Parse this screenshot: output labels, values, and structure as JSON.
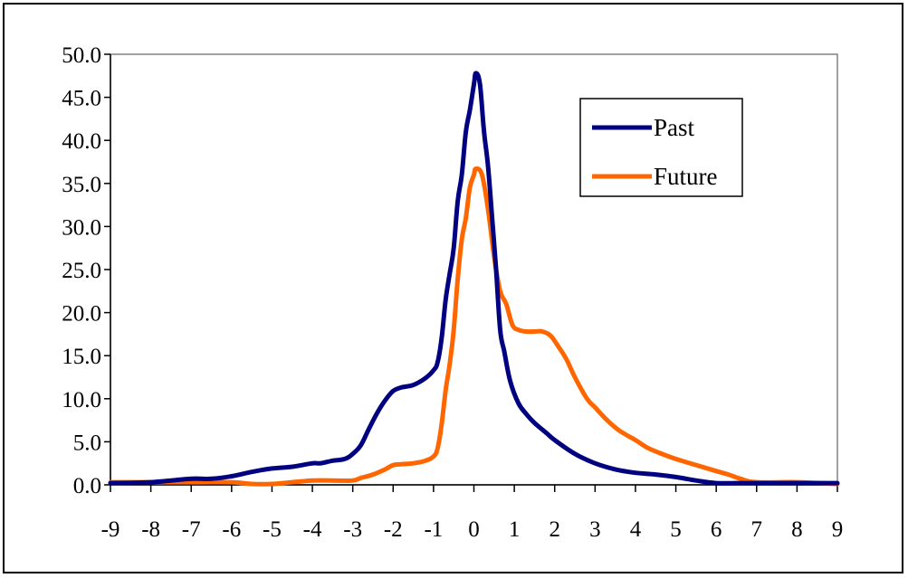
{
  "chart_data": {
    "type": "line",
    "title": "",
    "xlabel": "",
    "ylabel": "",
    "xlim": [
      -9,
      9
    ],
    "ylim": [
      0,
      50
    ],
    "x_ticks": [
      -9,
      -8,
      -7,
      -6,
      -5,
      -4,
      -3,
      -2,
      -1,
      0,
      1,
      2,
      3,
      4,
      5,
      6,
      7,
      8,
      9
    ],
    "x_tick_labels": [
      "-9",
      "-8",
      "-7",
      "-6",
      "-5",
      "-4",
      "-3",
      "-2",
      "-1",
      "0",
      "1",
      "2",
      "3",
      "4",
      "5",
      "6",
      "7",
      "8",
      "9"
    ],
    "y_ticks": [
      0,
      5,
      10,
      15,
      20,
      25,
      30,
      35,
      40,
      45,
      50
    ],
    "y_tick_labels": [
      "0.0",
      "5.0",
      "10.0",
      "15.0",
      "20.0",
      "25.0",
      "30.0",
      "35.0",
      "40.0",
      "45.0",
      "50.0"
    ],
    "grid": false,
    "legend_position": "top-right",
    "series": [
      {
        "name": "Past",
        "color": "#000080",
        "points": [
          [
            -9,
            0.2
          ],
          [
            -8,
            0.3
          ],
          [
            -7,
            0.7
          ],
          [
            -6.5,
            0.7
          ],
          [
            -6,
            1.0
          ],
          [
            -5.5,
            1.5
          ],
          [
            -5,
            1.9
          ],
          [
            -4.5,
            2.1
          ],
          [
            -4,
            2.5
          ],
          [
            -3.8,
            2.5
          ],
          [
            -3.5,
            2.8
          ],
          [
            -3.2,
            3.0
          ],
          [
            -3,
            3.6
          ],
          [
            -2.8,
            4.6
          ],
          [
            -2.6,
            6.5
          ],
          [
            -2.4,
            8.3
          ],
          [
            -2.2,
            9.8
          ],
          [
            -2,
            10.9
          ],
          [
            -1.8,
            11.3
          ],
          [
            -1.5,
            11.6
          ],
          [
            -1.2,
            12.4
          ],
          [
            -1,
            13.3
          ],
          [
            -0.9,
            14.2
          ],
          [
            -0.8,
            17.0
          ],
          [
            -0.7,
            21.5
          ],
          [
            -0.6,
            24.5
          ],
          [
            -0.5,
            27.5
          ],
          [
            -0.4,
            33.0
          ],
          [
            -0.3,
            36.0
          ],
          [
            -0.2,
            41.0
          ],
          [
            -0.1,
            43.5
          ],
          [
            0,
            46.5
          ],
          [
            0.05,
            47.8
          ],
          [
            0.15,
            46.5
          ],
          [
            0.25,
            41.0
          ],
          [
            0.35,
            37.0
          ],
          [
            0.45,
            31.0
          ],
          [
            0.55,
            25.0
          ],
          [
            0.65,
            18.0
          ],
          [
            0.75,
            15.5
          ],
          [
            0.9,
            12.0
          ],
          [
            1.1,
            9.5
          ],
          [
            1.3,
            8.2
          ],
          [
            1.5,
            7.2
          ],
          [
            1.8,
            6.0
          ],
          [
            2,
            5.2
          ],
          [
            2.5,
            3.6
          ],
          [
            3,
            2.5
          ],
          [
            3.5,
            1.8
          ],
          [
            4,
            1.4
          ],
          [
            4.5,
            1.2
          ],
          [
            5,
            0.9
          ],
          [
            5.5,
            0.5
          ],
          [
            6,
            0.2
          ],
          [
            6.5,
            0.2
          ],
          [
            7,
            0.2
          ],
          [
            8,
            0.2
          ],
          [
            9,
            0.2
          ]
        ]
      },
      {
        "name": "Future",
        "color": "#FF6600",
        "points": [
          [
            -9,
            0.3
          ],
          [
            -7,
            0.3
          ],
          [
            -6,
            0.3
          ],
          [
            -5.5,
            0.1
          ],
          [
            -5,
            0.1
          ],
          [
            -4.5,
            0.3
          ],
          [
            -4,
            0.5
          ],
          [
            -3.5,
            0.5
          ],
          [
            -3,
            0.5
          ],
          [
            -2.8,
            0.8
          ],
          [
            -2.5,
            1.2
          ],
          [
            -2.2,
            1.8
          ],
          [
            -2,
            2.3
          ],
          [
            -1.8,
            2.4
          ],
          [
            -1.5,
            2.5
          ],
          [
            -1.2,
            2.8
          ],
          [
            -1,
            3.3
          ],
          [
            -0.9,
            4.2
          ],
          [
            -0.8,
            7.0
          ],
          [
            -0.7,
            11.0
          ],
          [
            -0.6,
            14.0
          ],
          [
            -0.5,
            18.0
          ],
          [
            -0.4,
            24.0
          ],
          [
            -0.3,
            28.5
          ],
          [
            -0.2,
            31.0
          ],
          [
            -0.1,
            34.5
          ],
          [
            0,
            36.0
          ],
          [
            0.05,
            36.7
          ],
          [
            0.2,
            36.0
          ],
          [
            0.35,
            32.0
          ],
          [
            0.5,
            26.5
          ],
          [
            0.65,
            22.5
          ],
          [
            0.8,
            21.0
          ],
          [
            0.95,
            18.6
          ],
          [
            1.1,
            18.0
          ],
          [
            1.3,
            17.8
          ],
          [
            1.5,
            17.8
          ],
          [
            1.7,
            17.8
          ],
          [
            1.9,
            17.3
          ],
          [
            2.1,
            16.0
          ],
          [
            2.3,
            14.5
          ],
          [
            2.5,
            12.5
          ],
          [
            2.8,
            10.0
          ],
          [
            3,
            9.0
          ],
          [
            3.3,
            7.5
          ],
          [
            3.6,
            6.3
          ],
          [
            4,
            5.2
          ],
          [
            4.3,
            4.3
          ],
          [
            4.6,
            3.7
          ],
          [
            5,
            3.0
          ],
          [
            5.5,
            2.3
          ],
          [
            6,
            1.6
          ],
          [
            6.3,
            1.2
          ],
          [
            6.6,
            0.7
          ],
          [
            7,
            0.3
          ],
          [
            8,
            0.3
          ],
          [
            9,
            0.1
          ]
        ]
      }
    ]
  }
}
